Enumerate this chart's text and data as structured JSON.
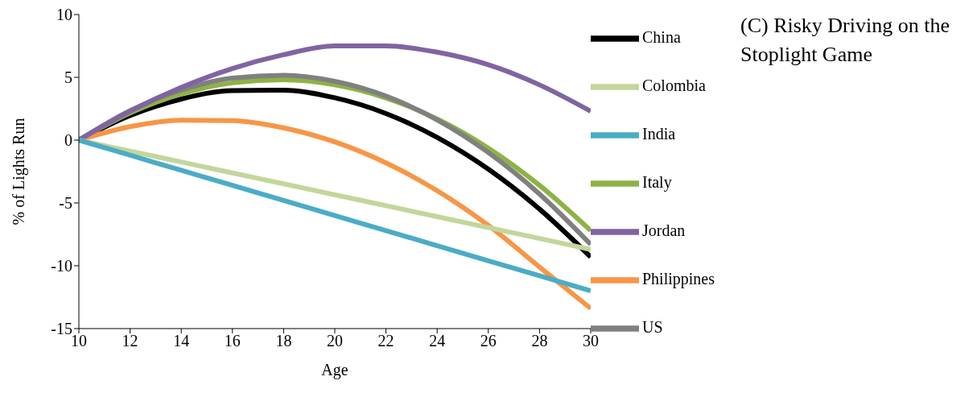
{
  "chart_data": {
    "type": "line",
    "title": "(C) Risky Driving on the Stoplight Game",
    "xlabel": "Age",
    "ylabel": "% of Lights Run",
    "x": [
      10,
      12,
      14,
      16,
      18,
      20,
      22,
      24,
      26,
      28,
      30
    ],
    "series": [
      {
        "name": "China",
        "color": "#000000",
        "values": [
          0,
          1.96,
          3.27,
          3.95,
          3.98,
          3.37,
          2.12,
          0.22,
          -2.31,
          -5.49,
          -9.3
        ]
      },
      {
        "name": "Italy",
        "color": "#8db344",
        "values": [
          0,
          2.16,
          3.68,
          4.56,
          4.8,
          4.4,
          3.36,
          1.68,
          -0.64,
          -3.6,
          -7.2
        ]
      },
      {
        "name": "Philippines",
        "color": "#f79646",
        "values": [
          0,
          1.07,
          1.59,
          1.56,
          0.98,
          -0.14,
          -1.81,
          -4.02,
          -6.79,
          -10.1,
          -13.4
        ]
      },
      {
        "name": "US",
        "color": "#808080",
        "values": [
          0,
          2.35,
          3.99,
          4.93,
          5.16,
          4.68,
          3.5,
          1.61,
          -0.99,
          -4.29,
          -8.3
        ]
      },
      {
        "name": "Jordan",
        "color": "#8064a2",
        "values": [
          0,
          2.3,
          4.2,
          5.7,
          6.8,
          7.5,
          7.5,
          7.0,
          6.0,
          4.4,
          2.3
        ]
      },
      {
        "name": "Colombia",
        "color": "#c3d69b",
        "values": [
          0,
          -0.87,
          -1.74,
          -2.61,
          -3.48,
          -4.35,
          -5.22,
          -6.09,
          -6.96,
          -7.83,
          -8.7
        ]
      },
      {
        "name": "India",
        "color": "#4bacc6",
        "values": [
          0,
          -1.2,
          -2.4,
          -3.6,
          -4.8,
          -6.0,
          -7.2,
          -8.4,
          -9.6,
          -10.8,
          -12.0
        ]
      }
    ],
    "xlim": [
      10,
      30
    ],
    "xticks": [
      10,
      12,
      14,
      16,
      18,
      20,
      22,
      24,
      26,
      28,
      30
    ],
    "ylim": [
      -15,
      10
    ],
    "yticks": [
      -15,
      -10,
      -5,
      0,
      5,
      10
    ],
    "grid": false,
    "legend": "right",
    "marker": "none",
    "line_style": "solid"
  }
}
